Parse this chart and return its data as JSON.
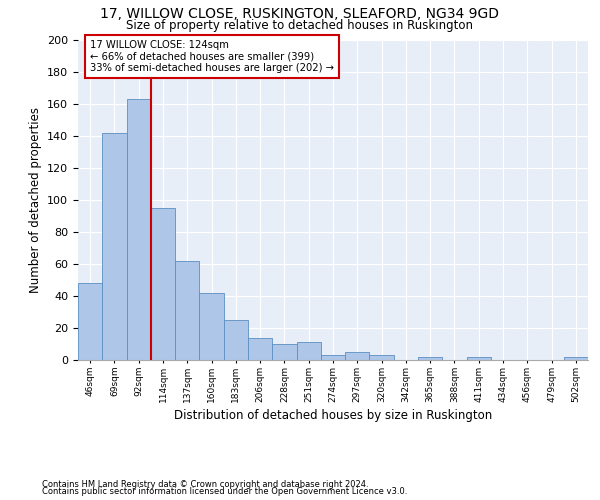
{
  "title1": "17, WILLOW CLOSE, RUSKINGTON, SLEAFORD, NG34 9GD",
  "title2": "Size of property relative to detached houses in Ruskington",
  "xlabel": "Distribution of detached houses by size in Ruskington",
  "ylabel": "Number of detached properties",
  "categories": [
    "46sqm",
    "69sqm",
    "92sqm",
    "114sqm",
    "137sqm",
    "160sqm",
    "183sqm",
    "206sqm",
    "228sqm",
    "251sqm",
    "274sqm",
    "297sqm",
    "320sqm",
    "342sqm",
    "365sqm",
    "388sqm",
    "411sqm",
    "434sqm",
    "456sqm",
    "479sqm",
    "502sqm"
  ],
  "values": [
    48,
    142,
    163,
    95,
    62,
    42,
    25,
    14,
    10,
    11,
    3,
    5,
    3,
    0,
    2,
    0,
    2,
    0,
    0,
    0,
    2
  ],
  "bar_color": "#aec6e8",
  "bar_edge_color": "#5a8fc2",
  "annotation_box_color": "#cc0000",
  "annotation_line_color": "#cc0000",
  "annotation_text": "17 WILLOW CLOSE: 124sqm\n← 66% of detached houses are smaller (399)\n33% of semi-detached houses are larger (202) →",
  "vline_x": 2.5,
  "ylim": [
    0,
    200
  ],
  "yticks": [
    0,
    20,
    40,
    60,
    80,
    100,
    120,
    140,
    160,
    180,
    200
  ],
  "footnote1": "Contains HM Land Registry data © Crown copyright and database right 2024.",
  "footnote2": "Contains public sector information licensed under the Open Government Licence v3.0.",
  "bg_color": "#e8eef7"
}
